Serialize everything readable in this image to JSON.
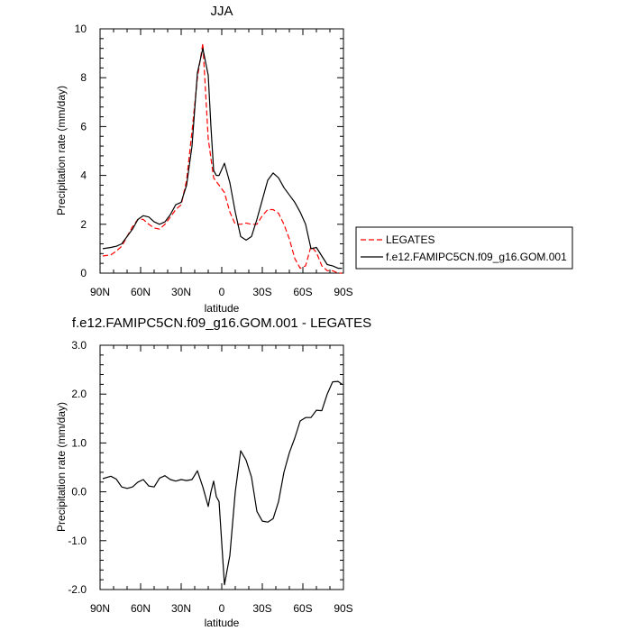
{
  "chart_data": [
    {
      "type": "line",
      "title": "JJA",
      "xlabel": "latitude",
      "ylabel": "Precipitation rate (mm/day)",
      "xlim": [
        90,
        -90
      ],
      "ylim": [
        0,
        10
      ],
      "x_ticks": [
        "90N",
        "60N",
        "30N",
        "0",
        "30S",
        "60S",
        "90S"
      ],
      "y_ticks": [
        "0",
        "2",
        "4",
        "6",
        "8",
        "10"
      ],
      "legend": "right",
      "series": [
        {
          "name": "LEGATES",
          "color": "#ff0000",
          "dash": "dashed",
          "x": [
            88,
            82,
            78,
            74,
            70,
            66,
            62,
            58,
            54,
            50,
            46,
            42,
            38,
            34,
            30,
            26,
            22,
            18,
            14,
            10,
            6,
            2,
            -2,
            -6,
            -10,
            -14,
            -18,
            -22,
            -26,
            -30,
            -34,
            -38,
            -42,
            -46,
            -50,
            -54,
            -58,
            -62,
            -66,
            -70,
            -74,
            -78,
            -82,
            -86,
            -89
          ],
          "y": [
            0.7,
            0.75,
            0.9,
            1.1,
            1.5,
            1.9,
            2.2,
            2.2,
            2.0,
            1.85,
            1.8,
            2.0,
            2.3,
            2.6,
            2.8,
            3.8,
            5.8,
            8.0,
            9.4,
            5.5,
            3.9,
            3.6,
            3.3,
            2.5,
            2.0,
            2.0,
            2.05,
            2.0,
            2.0,
            2.35,
            2.6,
            2.6,
            2.45,
            2.0,
            1.4,
            0.6,
            0.2,
            0.3,
            1.1,
            0.85,
            0.3,
            0.1,
            0.1,
            0.0,
            0.0
          ]
        },
        {
          "name": "f.e12.FAMIPC5CN.f09_g16.GOM.001",
          "color": "#000000",
          "dash": "solid",
          "x": [
            88,
            82,
            78,
            74,
            70,
            66,
            62,
            58,
            54,
            50,
            46,
            42,
            38,
            34,
            30,
            26,
            22,
            18,
            14,
            10,
            8,
            6,
            4,
            2,
            -2,
            -6,
            -10,
            -14,
            -18,
            -22,
            -26,
            -30,
            -34,
            -38,
            -42,
            -46,
            -50,
            -54,
            -58,
            -62,
            -66,
            -70,
            -74,
            -78,
            -82,
            -86,
            -89
          ],
          "y": [
            1.0,
            1.05,
            1.1,
            1.2,
            1.5,
            1.8,
            2.2,
            2.35,
            2.3,
            2.1,
            2.0,
            2.1,
            2.4,
            2.8,
            2.9,
            3.6,
            5.2,
            8.2,
            9.2,
            8.1,
            6.0,
            4.2,
            4.0,
            4.0,
            4.5,
            3.7,
            2.5,
            1.5,
            1.35,
            1.5,
            2.2,
            3.0,
            3.8,
            4.1,
            3.9,
            3.5,
            3.2,
            2.9,
            2.5,
            2.0,
            1.0,
            1.05,
            0.7,
            0.35,
            0.3,
            0.2,
            0.2
          ]
        }
      ]
    },
    {
      "type": "line",
      "title": "f.e12.FAMIPC5CN.f09_g16.GOM.001 - LEGATES",
      "xlabel": "latitude",
      "ylabel": "Precipitation rate (mm/day)",
      "xlim": [
        90,
        -90
      ],
      "ylim": [
        -2,
        3
      ],
      "x_ticks": [
        "90N",
        "60N",
        "30N",
        "0",
        "30S",
        "60S",
        "90S"
      ],
      "y_ticks": [
        "-2.0",
        "-1.0",
        "0.0",
        "1.0",
        "2.0",
        "3.0"
      ],
      "series": [
        {
          "name": "",
          "color": "#000000",
          "dash": "solid",
          "x": [
            88,
            82,
            78,
            74,
            70,
            66,
            62,
            58,
            54,
            50,
            46,
            42,
            38,
            34,
            30,
            26,
            22,
            18,
            14,
            10,
            8,
            6,
            4,
            2,
            -2,
            -6,
            -10,
            -14,
            -18,
            -22,
            -26,
            -30,
            -34,
            -38,
            -42,
            -46,
            -50,
            -54,
            -58,
            -62,
            -66,
            -70,
            -74,
            -78,
            -82,
            -86,
            -89
          ],
          "y": [
            0.27,
            0.32,
            0.26,
            0.1,
            0.07,
            0.1,
            0.2,
            0.25,
            0.12,
            0.1,
            0.28,
            0.33,
            0.25,
            0.22,
            0.25,
            0.23,
            0.25,
            0.43,
            0.1,
            -0.3,
            0.0,
            0.22,
            -0.1,
            -0.2,
            -1.9,
            -1.3,
            0.0,
            0.84,
            0.65,
            0.3,
            -0.4,
            -0.6,
            -0.62,
            -0.55,
            -0.2,
            0.4,
            0.8,
            1.1,
            1.45,
            1.52,
            1.52,
            1.67,
            1.66,
            2.0,
            2.25,
            2.26,
            2.2
          ]
        }
      ]
    }
  ]
}
